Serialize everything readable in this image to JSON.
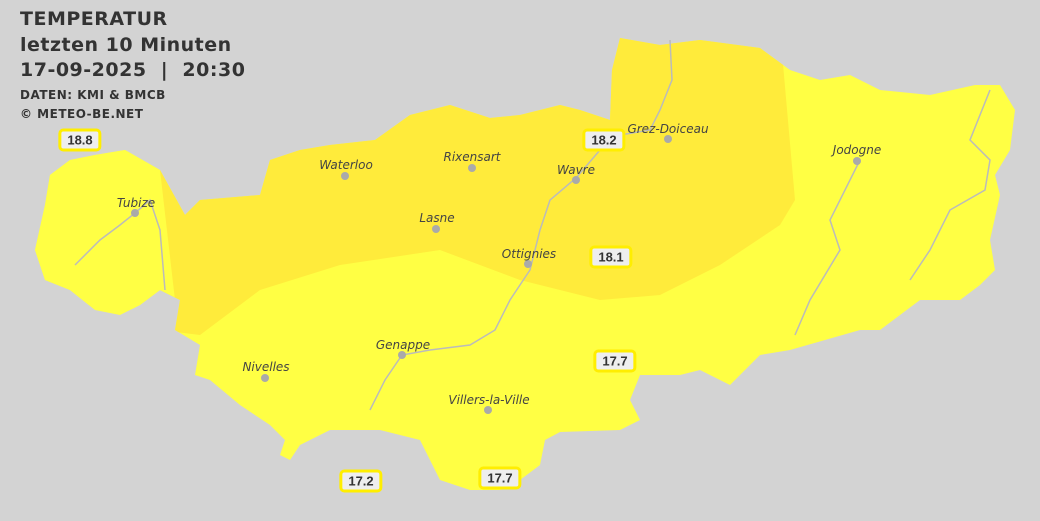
{
  "header": {
    "title": "TEMPERATUR",
    "subtitle": "letzten 10 Minuten",
    "datetime": "17-09-2025  |  20:30",
    "source": "DATEN: KMI & BMCB",
    "copyright": "© METEO-BE.NET"
  },
  "colors": {
    "background": "#d3d3d3",
    "zone_warm": "#ffeb3b",
    "zone_cool": "#ffff44",
    "river": "#bbbbbb"
  },
  "cities": [
    {
      "name": "Tubize"
    },
    {
      "name": "Waterloo"
    },
    {
      "name": "Rixensart"
    },
    {
      "name": "Wavre"
    },
    {
      "name": "Grez-Doiceau"
    },
    {
      "name": "Jodogne"
    },
    {
      "name": "Lasne"
    },
    {
      "name": "Ottignies"
    },
    {
      "name": "Genappe"
    },
    {
      "name": "Nivelles"
    },
    {
      "name": "Villers-la-Ville"
    }
  ],
  "temperatures": [
    {
      "value": "18.8"
    },
    {
      "value": "18.2"
    },
    {
      "value": "18.1"
    },
    {
      "value": "17.7"
    },
    {
      "value": "17.7"
    },
    {
      "value": "17.2"
    }
  ]
}
